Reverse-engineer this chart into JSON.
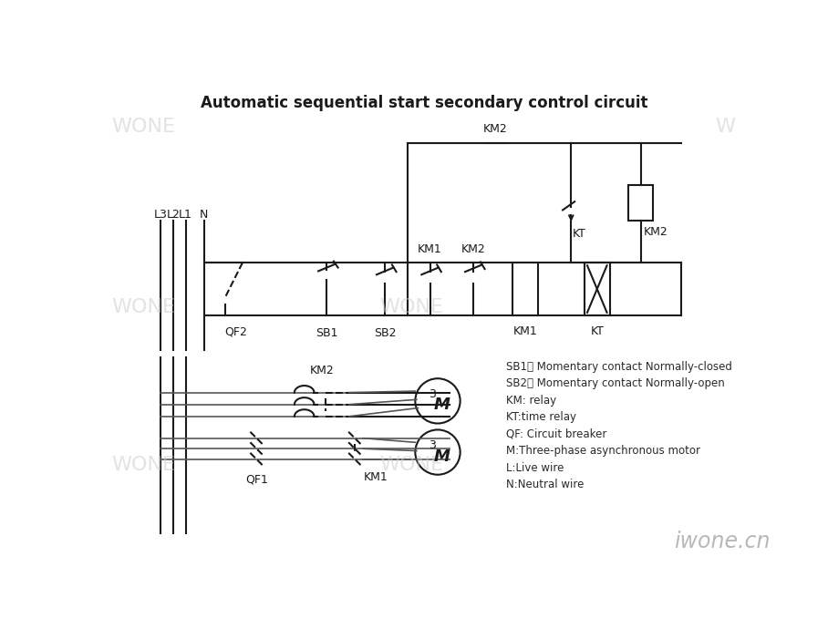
{
  "title": "Automatic sequential start secondary control circuit",
  "title_fontsize": 12,
  "line_color": "#1a1a1a",
  "bg_color": "#ffffff",
  "watermark_color": "#cccccc",
  "legend_lines": [
    "SB1： Momentary contact Normally-closed",
    "SB2： Momentary contact Normally-open",
    "KM: relay",
    "KT:time relay",
    "QF: Circuit breaker",
    "M:Three-phase asynchronous motor",
    "L:Live wire",
    "N:Neutral wire"
  ],
  "credit": "iwone.cn"
}
